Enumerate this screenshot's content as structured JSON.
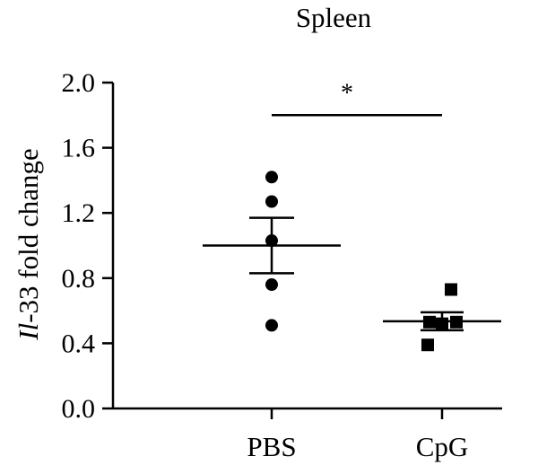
{
  "chart_data": {
    "type": "scatter",
    "title": "Spleen",
    "ylabel_italic": "Il",
    "ylabel_rest": "-33 fold change",
    "xlabel": "",
    "ylim": [
      0,
      2.0
    ],
    "yticks": [
      "0.0",
      "0.4",
      "0.8",
      "1.2",
      "1.6",
      "2.0"
    ],
    "categories": [
      "PBS",
      "CpG"
    ],
    "groups": [
      {
        "category": "PBS",
        "marker": "circle",
        "values": [
          1.42,
          1.27,
          1.03,
          0.76,
          0.51
        ],
        "mean": 1.0,
        "sem": [
          0.83,
          1.17
        ]
      },
      {
        "category": "CpG",
        "marker": "square",
        "values": [
          0.73,
          0.53,
          0.52,
          0.53,
          0.39
        ],
        "mean": 0.535,
        "sem": [
          0.48,
          0.59
        ]
      }
    ],
    "significance": {
      "label": "*",
      "between": [
        "PBS",
        "CpG"
      ],
      "y": 1.8
    },
    "grid": false,
    "legend": "none",
    "color": "#000000"
  }
}
